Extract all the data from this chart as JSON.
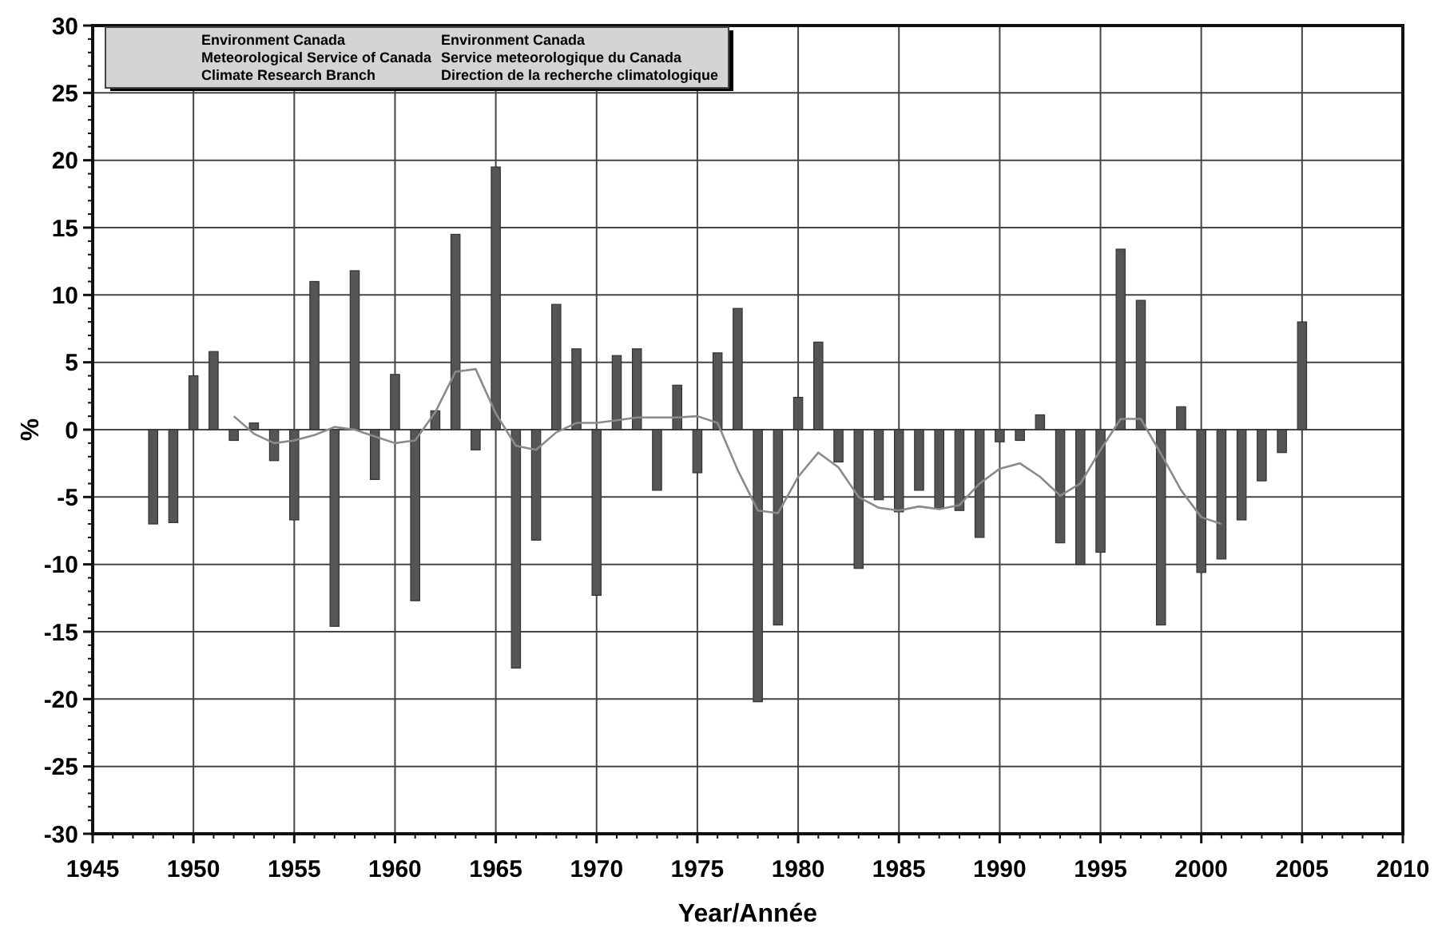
{
  "chart_data": {
    "type": "bar",
    "xlabel": "Year/Année",
    "ylabel": "%",
    "x": [
      1948,
      1949,
      1950,
      1951,
      1952,
      1953,
      1954,
      1955,
      1956,
      1957,
      1958,
      1959,
      1960,
      1961,
      1962,
      1963,
      1964,
      1965,
      1966,
      1967,
      1968,
      1969,
      1970,
      1971,
      1972,
      1973,
      1974,
      1975,
      1976,
      1977,
      1978,
      1979,
      1980,
      1981,
      1982,
      1983,
      1984,
      1985,
      1986,
      1987,
      1988,
      1989,
      1990,
      1991,
      1992,
      1993,
      1994,
      1995,
      1996,
      1997,
      1998,
      1999,
      2000,
      2001,
      2002,
      2003,
      2004,
      2005
    ],
    "series": [
      {
        "color": "#555555",
        "values": [
          -7,
          -6.9,
          4,
          5.8,
          -0.8,
          0.5,
          -2.3,
          -6.7,
          11,
          -14.6,
          11.8,
          -3.7,
          4.1,
          -12.7,
          1.4,
          14.5,
          -1.5,
          19.5,
          -17.7,
          -8.2,
          9.3,
          6,
          -12.3,
          5.5,
          6,
          -4.5,
          3.3,
          -3.2,
          5.7,
          9,
          -20.2,
          -14.5,
          2.4,
          6.5,
          -2.4,
          -10.3,
          -5.2,
          -6.1,
          -4.5,
          -5.8,
          -6,
          -8,
          -0.9,
          -0.8,
          1.1,
          -8.4,
          -10,
          -9.1,
          13.4,
          9.6,
          -14.5,
          1.7,
          -10.6,
          -9.6,
          -6.7,
          -3.8,
          -1.7,
          8
        ]
      },
      {
        "type": "line",
        "color": "#8a8a8a",
        "x": [
          1952,
          1953,
          1954,
          1955,
          1956,
          1957,
          1958,
          1959,
          1960,
          1961,
          1962,
          1963,
          1964,
          1965,
          1966,
          1967,
          1968,
          1969,
          1970,
          1971,
          1972,
          1973,
          1974,
          1975,
          1976,
          1977,
          1978,
          1979,
          1980,
          1981,
          1982,
          1983,
          1984,
          1985,
          1986,
          1987,
          1988,
          1989,
          1990,
          1991,
          1992,
          1993,
          1994,
          1995,
          1996,
          1997,
          1998,
          1999,
          2000,
          2001
        ],
        "values": [
          1,
          -0.3,
          -1,
          -0.8,
          -0.4,
          0.2,
          0,
          -0.5,
          -1,
          -0.8,
          1.3,
          4.3,
          4.5,
          1.2,
          -1.2,
          -1.5,
          -0.2,
          0.5,
          0.5,
          0.7,
          0.9,
          0.9,
          0.9,
          1,
          0.5,
          -3,
          -6,
          -6.2,
          -3.5,
          -1.7,
          -2.8,
          -5,
          -5.8,
          -6,
          -5.7,
          -5.9,
          -5.6,
          -4,
          -2.9,
          -2.5,
          -3.5,
          -4.9,
          -4,
          -1.5,
          0.8,
          0.8,
          -1.8,
          -4.5,
          -6.5,
          -7
        ]
      }
    ],
    "xlim": [
      1945,
      2010
    ],
    "xticks": [
      1945,
      1950,
      1955,
      1960,
      1965,
      1970,
      1975,
      1980,
      1985,
      1990,
      1995,
      2000,
      2005,
      2010
    ],
    "ylim": [
      -30,
      30
    ],
    "yticks": [
      -30,
      -25,
      -20,
      -15,
      -10,
      -5,
      0,
      5,
      10,
      15,
      20,
      25,
      30
    ],
    "grid": true,
    "marker": "none",
    "line_style": "solid",
    "annotations": [
      "Environment Canada",
      "Meteorological Service of Canada",
      "Climate Research Branch",
      "Environment Canada",
      "Service meteorologique du Canada",
      "Direction de la recherche climatologique"
    ]
  }
}
